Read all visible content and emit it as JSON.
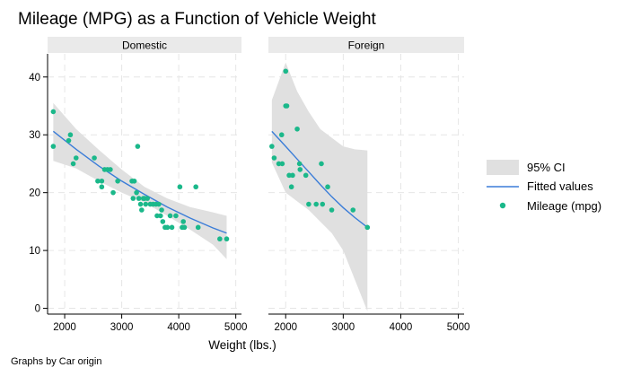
{
  "title": "Mileage (MPG) as a Function of Vehicle Weight",
  "xlabel": "Weight (lbs.)",
  "note": "Graphs by Car origin",
  "legend": {
    "ci_label": "95% CI",
    "fit_label": "Fitted values",
    "points_label": "Mileage (mpg)"
  },
  "colors": {
    "points": "#1bb88a",
    "fit": "#3b7dd8",
    "ci": "#e0e0e0"
  },
  "chart_data": {
    "type": "scatter",
    "xlim": [
      1700,
      5100
    ],
    "ylim": [
      -1,
      44
    ],
    "xticks": [
      2000,
      3000,
      4000,
      5000
    ],
    "yticks": [
      0,
      10,
      20,
      30,
      40
    ],
    "grid": true,
    "legend_position": "right",
    "panels": [
      {
        "label": "Domestic",
        "points": [
          [
            1800,
            34
          ],
          [
            1800,
            28
          ],
          [
            2070,
            29
          ],
          [
            2100,
            30
          ],
          [
            2150,
            25
          ],
          [
            2200,
            26
          ],
          [
            2520,
            26
          ],
          [
            2580,
            22
          ],
          [
            2650,
            22
          ],
          [
            2650,
            21
          ],
          [
            2700,
            24
          ],
          [
            2750,
            24
          ],
          [
            2800,
            24
          ],
          [
            2850,
            20
          ],
          [
            2930,
            22
          ],
          [
            3180,
            22
          ],
          [
            3220,
            22
          ],
          [
            3200,
            19
          ],
          [
            3260,
            20
          ],
          [
            3280,
            28
          ],
          [
            3300,
            19
          ],
          [
            3330,
            18
          ],
          [
            3350,
            17
          ],
          [
            3380,
            19
          ],
          [
            3400,
            19
          ],
          [
            3420,
            18
          ],
          [
            3450,
            19
          ],
          [
            3500,
            18
          ],
          [
            3550,
            18
          ],
          [
            3600,
            18
          ],
          [
            3620,
            16
          ],
          [
            3650,
            18
          ],
          [
            3680,
            16
          ],
          [
            3700,
            17
          ],
          [
            3720,
            15
          ],
          [
            3760,
            14
          ],
          [
            3800,
            14
          ],
          [
            3850,
            16
          ],
          [
            3880,
            14
          ],
          [
            3950,
            16
          ],
          [
            4020,
            21
          ],
          [
            4060,
            14
          ],
          [
            4080,
            15
          ],
          [
            4100,
            14
          ],
          [
            4300,
            21
          ],
          [
            4340,
            14
          ],
          [
            4720,
            12
          ],
          [
            4840,
            12
          ]
        ],
        "fit": [
          [
            1800,
            30.6
          ],
          [
            2200,
            27.5
          ],
          [
            2600,
            24.6
          ],
          [
            3000,
            22.0
          ],
          [
            3400,
            19.7
          ],
          [
            3800,
            17.5
          ],
          [
            4200,
            15.6
          ],
          [
            4600,
            13.9
          ],
          [
            4840,
            13.0
          ]
        ],
        "ci_upper": [
          [
            1800,
            35.5
          ],
          [
            2200,
            31.0
          ],
          [
            2600,
            27.4
          ],
          [
            3000,
            24.0
          ],
          [
            3400,
            21.0
          ],
          [
            3800,
            19.0
          ],
          [
            4200,
            17.5
          ],
          [
            4600,
            16.6
          ],
          [
            4840,
            16.0
          ]
        ],
        "ci_lower": [
          [
            1800,
            25.5
          ],
          [
            2200,
            24.2
          ],
          [
            2600,
            22.0
          ],
          [
            3000,
            20.0
          ],
          [
            3400,
            18.3
          ],
          [
            3800,
            16.0
          ],
          [
            4200,
            13.6
          ],
          [
            4600,
            11.0
          ],
          [
            4840,
            8.5
          ]
        ]
      },
      {
        "label": "Foreign",
        "points": [
          [
            1760,
            28
          ],
          [
            1800,
            26
          ],
          [
            1880,
            25
          ],
          [
            1930,
            30
          ],
          [
            1940,
            25
          ],
          [
            2000,
            41
          ],
          [
            2000,
            35
          ],
          [
            2020,
            35
          ],
          [
            2060,
            23
          ],
          [
            2100,
            21
          ],
          [
            2120,
            23
          ],
          [
            2200,
            31
          ],
          [
            2240,
            25
          ],
          [
            2250,
            24
          ],
          [
            2350,
            23
          ],
          [
            2400,
            18
          ],
          [
            2530,
            18
          ],
          [
            2620,
            25
          ],
          [
            2640,
            18
          ],
          [
            2730,
            21
          ],
          [
            2800,
            17
          ],
          [
            3170,
            17
          ],
          [
            3420,
            14
          ]
        ],
        "fit": [
          [
            1760,
            30.6
          ],
          [
            2000,
            28.0
          ],
          [
            2200,
            25.8
          ],
          [
            2400,
            23.6
          ],
          [
            2600,
            21.4
          ],
          [
            2800,
            19.3
          ],
          [
            3000,
            17.4
          ],
          [
            3200,
            15.7
          ],
          [
            3420,
            14.0
          ]
        ],
        "ci_upper": [
          [
            1760,
            36.0
          ],
          [
            2000,
            42.5
          ],
          [
            2200,
            37.5
          ],
          [
            2400,
            34.0
          ],
          [
            2600,
            31.0
          ],
          [
            2800,
            29.5
          ],
          [
            3000,
            28.0
          ],
          [
            3200,
            27.5
          ],
          [
            3420,
            27.3
          ]
        ],
        "ci_lower": [
          [
            1760,
            25.2
          ],
          [
            2000,
            20.0
          ],
          [
            2200,
            18.5
          ],
          [
            2400,
            17.0
          ],
          [
            2600,
            15.0
          ],
          [
            2800,
            13.0
          ],
          [
            3000,
            10.0
          ],
          [
            3200,
            5.0
          ],
          [
            3420,
            -0.5
          ]
        ]
      }
    ]
  }
}
